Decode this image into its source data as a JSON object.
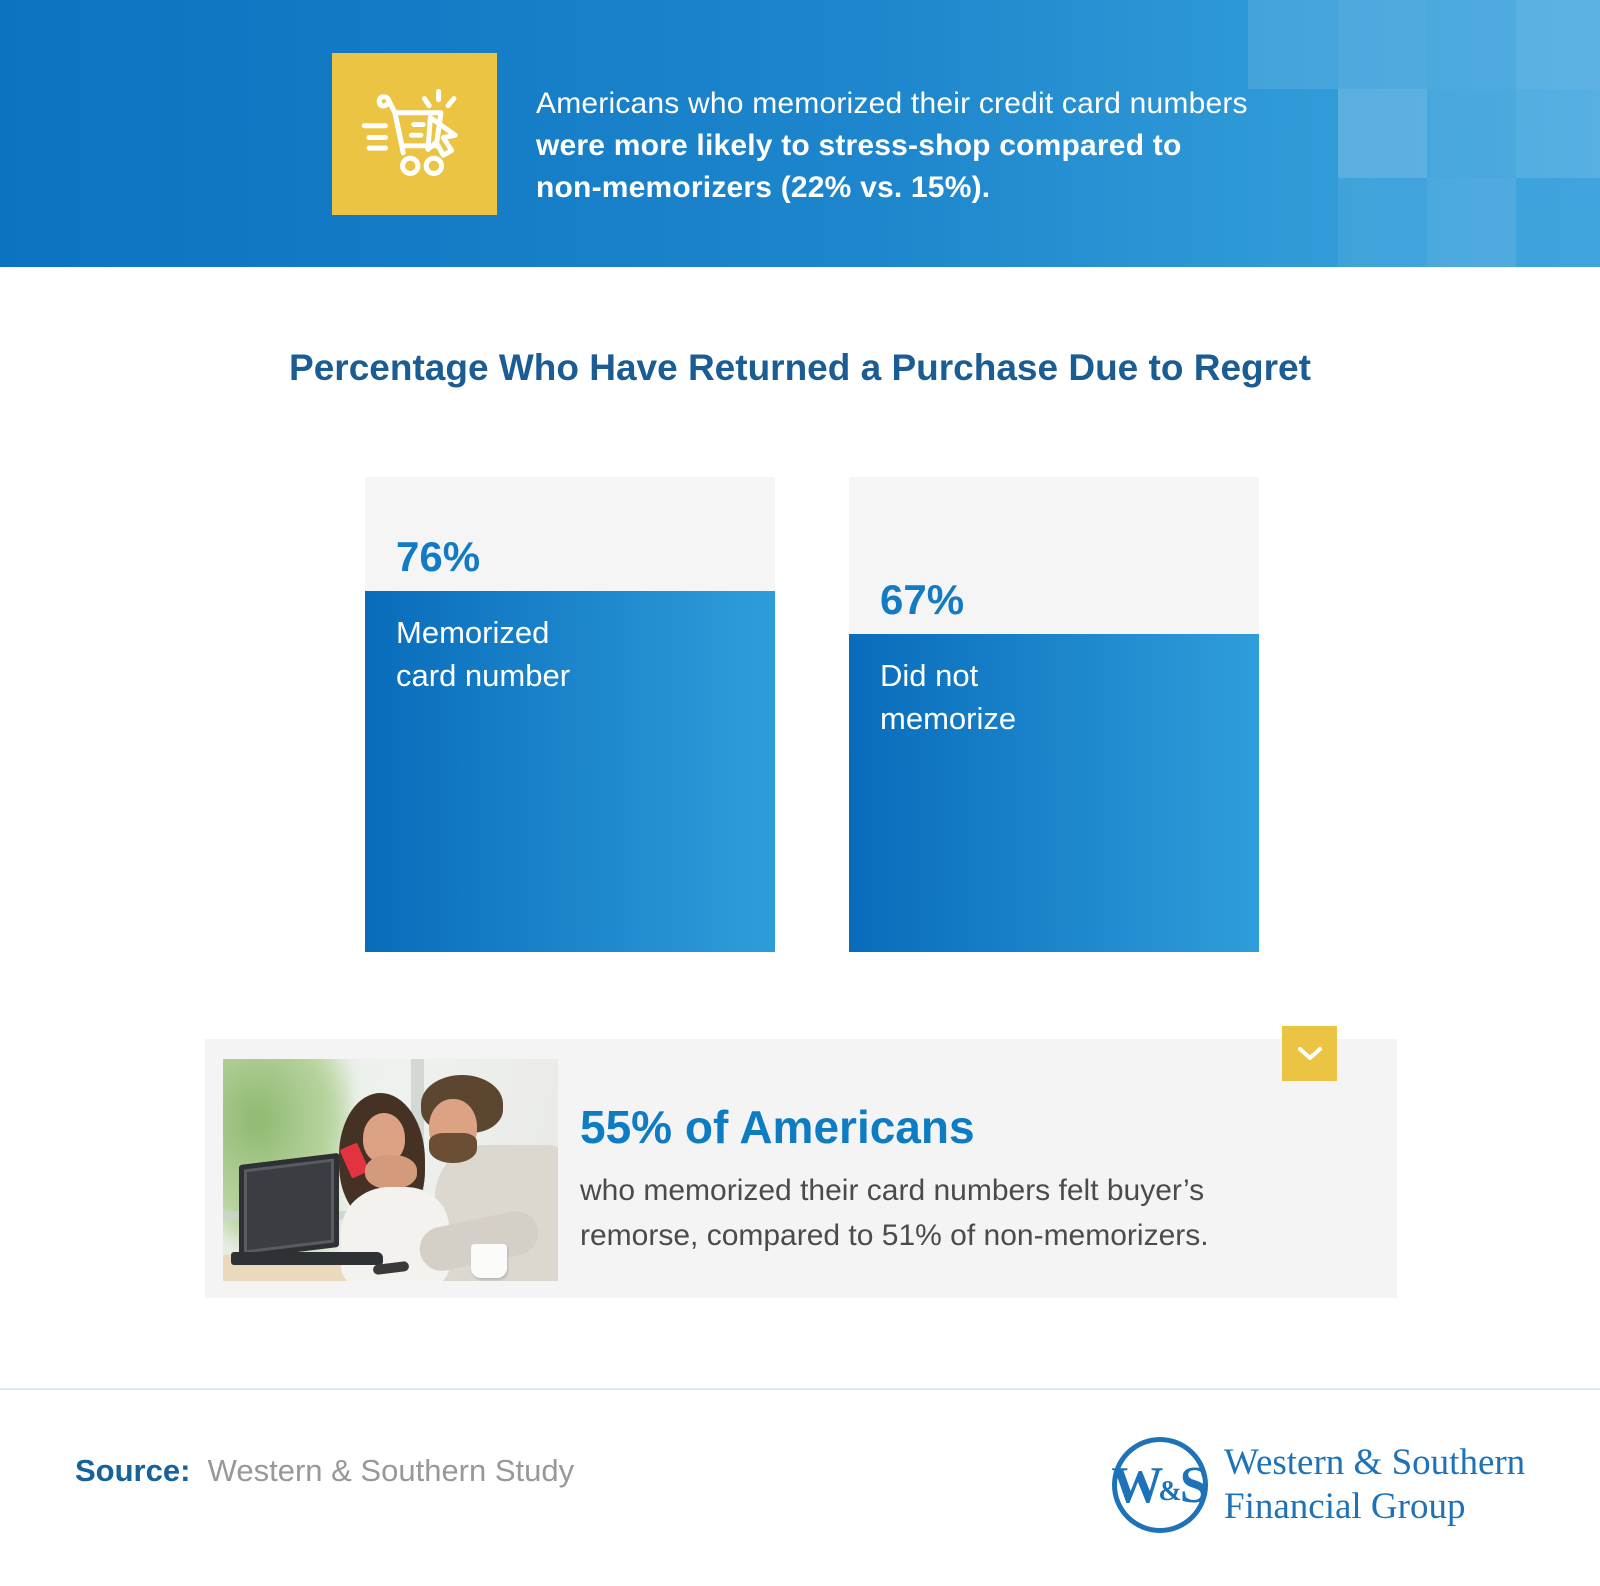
{
  "banner": {
    "icon": "shopping-cart-click-icon",
    "line1": "Americans who memorized their credit card numbers",
    "line2": "were more likely to stress-shop compared to",
    "line3": "non-memorizers (22% vs. 15%)."
  },
  "chart_data": {
    "type": "bar",
    "title": "Percentage Who Have Returned a Purchase Due to Regret",
    "categories": [
      "Memorized card number",
      "Did not memorize"
    ],
    "values": [
      76,
      67
    ],
    "ylim": [
      0,
      100
    ],
    "grid": false,
    "legend": null,
    "bars": [
      {
        "value": 76,
        "label": "76%",
        "cat_line1": "Memorized",
        "cat_line2": "card number"
      },
      {
        "value": 67,
        "label": "67%",
        "cat_line1": "Did not",
        "cat_line2": "memorize"
      }
    ]
  },
  "callout": {
    "chevron_icon": "chevron-down-icon",
    "heading": "55% of Americans",
    "body_line1": "who memorized their card numbers felt buyer’s",
    "body_line2": "remorse, compared to 51% of non-memorizers."
  },
  "footer": {
    "source_label": "Source:",
    "source_value": "Western & Southern Study",
    "monogram_w": "W",
    "monogram_amp": "&",
    "monogram_s": "S",
    "logo_line1": "Western & Southern",
    "logo_line2": "Financial Group"
  },
  "colors": {
    "banner_gradient_start": "#0b73c0",
    "banner_gradient_end": "#3aa2dd",
    "accent_yellow": "#ecc443",
    "title_blue": "#1b5d92",
    "bar_track_gray": "#f5f5f6",
    "bar_fill_start": "#086cbb",
    "bar_fill_end": "#2f9dda",
    "pct_label_blue": "#137ac4",
    "heading_blue": "#0d7cc3",
    "body_gray": "#4b4b4d",
    "source_blue": "#16639c",
    "source_gray": "#989898",
    "logo_blue": "#1e73b8",
    "card_red": "#e23340"
  }
}
